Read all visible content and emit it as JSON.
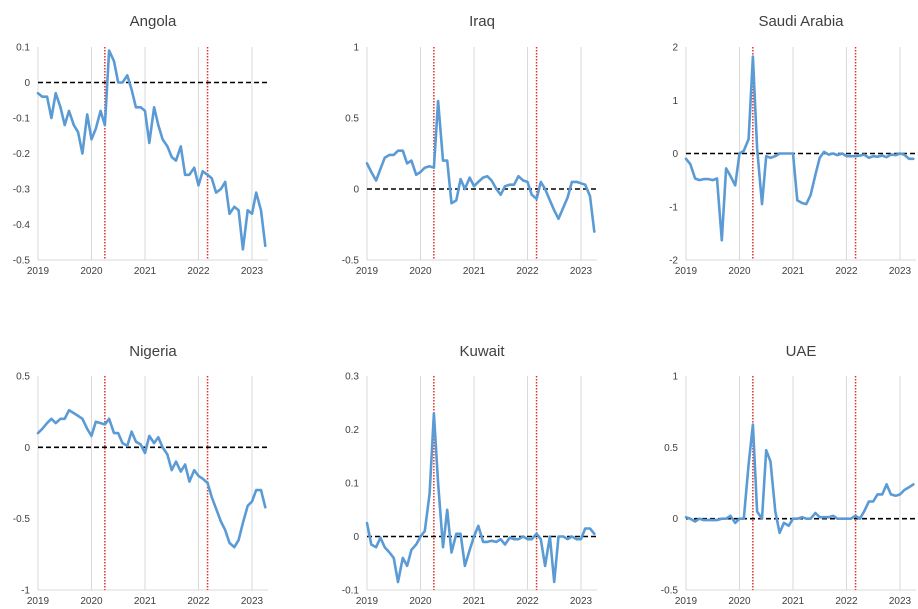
{
  "chart_data": [
    {
      "type": "line",
      "title": "Angola",
      "xlim": [
        2019,
        2023.3
      ],
      "ylim": [
        -0.5,
        0.1
      ],
      "yticks": [
        "0.1",
        "0",
        "-0.1",
        "-0.2",
        "-0.3",
        "-0.4",
        "-0.5"
      ],
      "xticks": [
        "2019",
        "2020",
        "2021",
        "2022",
        "2023"
      ],
      "reference_lines": {
        "zero": 0,
        "vertical": [
          2020.25,
          2022.17
        ]
      },
      "series": [
        {
          "color": "#5b9bd5",
          "x": [
            2019.0,
            2019.08,
            2019.17,
            2019.25,
            2019.33,
            2019.42,
            2019.5,
            2019.58,
            2019.67,
            2019.75,
            2019.83,
            2019.92,
            2020.0,
            2020.08,
            2020.17,
            2020.25,
            2020.33,
            2020.42,
            2020.5,
            2020.58,
            2020.67,
            2020.75,
            2020.83,
            2020.92,
            2021.0,
            2021.08,
            2021.17,
            2021.25,
            2021.33,
            2021.42,
            2021.5,
            2021.58,
            2021.67,
            2021.75,
            2021.83,
            2021.92,
            2022.0,
            2022.08,
            2022.17,
            2022.25,
            2022.33,
            2022.42,
            2022.5,
            2022.58,
            2022.67,
            2022.75,
            2022.83,
            2022.92,
            2023.0,
            2023.08,
            2023.17,
            2023.25
          ],
          "y": [
            -0.03,
            -0.04,
            -0.04,
            -0.1,
            -0.03,
            -0.07,
            -0.12,
            -0.08,
            -0.12,
            -0.14,
            -0.2,
            -0.09,
            -0.16,
            -0.13,
            -0.08,
            -0.12,
            0.09,
            0.06,
            0.0,
            0.0,
            0.02,
            -0.02,
            -0.07,
            -0.07,
            -0.08,
            -0.17,
            -0.07,
            -0.12,
            -0.16,
            -0.18,
            -0.21,
            -0.22,
            -0.18,
            -0.26,
            -0.26,
            -0.24,
            -0.29,
            -0.25,
            -0.26,
            -0.27,
            -0.31,
            -0.3,
            -0.28,
            -0.37,
            -0.35,
            -0.36,
            -0.47,
            -0.36,
            -0.37,
            -0.31,
            -0.36,
            -0.46
          ]
        }
      ]
    },
    {
      "type": "line",
      "title": "Iraq",
      "xlim": [
        2019,
        2023.3
      ],
      "ylim": [
        -0.5,
        1
      ],
      "yticks": [
        "1",
        "0.5",
        "0",
        "-0.5"
      ],
      "xticks": [
        "2019",
        "2020",
        "2021",
        "2022",
        "2023"
      ],
      "reference_lines": {
        "zero": 0,
        "vertical": [
          2020.25,
          2022.17
        ]
      },
      "series": [
        {
          "color": "#5b9bd5",
          "x": [
            2019.0,
            2019.08,
            2019.17,
            2019.25,
            2019.33,
            2019.42,
            2019.5,
            2019.58,
            2019.67,
            2019.75,
            2019.83,
            2019.92,
            2020.0,
            2020.08,
            2020.17,
            2020.25,
            2020.33,
            2020.42,
            2020.5,
            2020.58,
            2020.67,
            2020.75,
            2020.83,
            2020.92,
            2021.0,
            2021.08,
            2021.17,
            2021.25,
            2021.33,
            2021.42,
            2021.5,
            2021.58,
            2021.67,
            2021.75,
            2021.83,
            2021.92,
            2022.0,
            2022.08,
            2022.17,
            2022.25,
            2022.33,
            2022.42,
            2022.5,
            2022.58,
            2022.67,
            2022.75,
            2022.83,
            2022.92,
            2023.0,
            2023.08,
            2023.17,
            2023.25
          ],
          "y": [
            0.18,
            0.12,
            0.06,
            0.14,
            0.22,
            0.24,
            0.24,
            0.27,
            0.27,
            0.18,
            0.2,
            0.1,
            0.12,
            0.15,
            0.16,
            0.15,
            0.62,
            0.2,
            0.2,
            -0.1,
            -0.08,
            0.07,
            0.0,
            0.08,
            0.02,
            0.05,
            0.08,
            0.09,
            0.06,
            0.0,
            -0.04,
            0.02,
            0.03,
            0.03,
            0.09,
            0.06,
            0.05,
            -0.04,
            -0.07,
            0.05,
            0.0,
            -0.08,
            -0.15,
            -0.21,
            -0.13,
            -0.06,
            0.05,
            0.05,
            0.04,
            0.03,
            -0.05,
            -0.3
          ]
        }
      ]
    },
    {
      "type": "line",
      "title": "Saudi Arabia",
      "xlim": [
        2019,
        2023.3
      ],
      "ylim": [
        -2,
        2
      ],
      "yticks": [
        "2",
        "1",
        "0",
        "-1",
        "-2"
      ],
      "xticks": [
        "2019",
        "2020",
        "2021",
        "2022",
        "2023"
      ],
      "reference_lines": {
        "zero": 0,
        "vertical": [
          2020.25,
          2022.17
        ]
      },
      "series": [
        {
          "color": "#5b9bd5",
          "x": [
            2019.0,
            2019.08,
            2019.17,
            2019.25,
            2019.33,
            2019.42,
            2019.5,
            2019.58,
            2019.67,
            2019.75,
            2019.83,
            2019.92,
            2020.0,
            2020.08,
            2020.17,
            2020.25,
            2020.33,
            2020.42,
            2020.5,
            2020.58,
            2020.67,
            2020.75,
            2020.83,
            2020.92,
            2021.0,
            2021.08,
            2021.17,
            2021.25,
            2021.33,
            2021.42,
            2021.5,
            2021.58,
            2021.67,
            2021.75,
            2021.83,
            2021.92,
            2022.0,
            2022.08,
            2022.17,
            2022.25,
            2022.33,
            2022.42,
            2022.5,
            2022.58,
            2022.67,
            2022.75,
            2022.83,
            2022.92,
            2023.0,
            2023.08,
            2023.17,
            2023.25
          ],
          "y": [
            -0.1,
            -0.2,
            -0.47,
            -0.5,
            -0.48,
            -0.48,
            -0.5,
            -0.47,
            -1.63,
            -0.28,
            -0.42,
            -0.6,
            0.0,
            0.05,
            0.27,
            1.82,
            0.1,
            -0.95,
            -0.05,
            -0.08,
            -0.05,
            0.0,
            0.0,
            0.0,
            0.0,
            -0.88,
            -0.93,
            -0.95,
            -0.78,
            -0.4,
            -0.08,
            0.03,
            -0.02,
            0.0,
            -0.03,
            0.0,
            -0.05,
            -0.05,
            -0.05,
            -0.04,
            -0.02,
            -0.08,
            -0.05,
            -0.06,
            -0.04,
            -0.07,
            -0.02,
            -0.03,
            0.0,
            -0.02,
            -0.1,
            -0.1
          ]
        }
      ]
    },
    {
      "type": "line",
      "title": "Nigeria",
      "xlim": [
        2019,
        2023.3
      ],
      "ylim": [
        -1,
        0.5
      ],
      "yticks": [
        "0.5",
        "0",
        "-0.5",
        "-1"
      ],
      "xticks": [
        "2019",
        "2020",
        "2021",
        "2022",
        "2023"
      ],
      "reference_lines": {
        "zero": 0,
        "vertical": [
          2020.25,
          2022.17
        ]
      },
      "series": [
        {
          "color": "#5b9bd5",
          "x": [
            2019.0,
            2019.08,
            2019.17,
            2019.25,
            2019.33,
            2019.42,
            2019.5,
            2019.58,
            2019.67,
            2019.75,
            2019.83,
            2019.92,
            2020.0,
            2020.08,
            2020.17,
            2020.25,
            2020.33,
            2020.42,
            2020.5,
            2020.58,
            2020.67,
            2020.75,
            2020.83,
            2020.92,
            2021.0,
            2021.08,
            2021.17,
            2021.25,
            2021.33,
            2021.42,
            2021.5,
            2021.58,
            2021.67,
            2021.75,
            2021.83,
            2021.92,
            2022.0,
            2022.08,
            2022.17,
            2022.25,
            2022.33,
            2022.42,
            2022.5,
            2022.58,
            2022.67,
            2022.75,
            2022.83,
            2022.92,
            2023.0,
            2023.08,
            2023.17,
            2023.25
          ],
          "y": [
            0.1,
            0.13,
            0.17,
            0.2,
            0.17,
            0.2,
            0.2,
            0.26,
            0.24,
            0.22,
            0.2,
            0.13,
            0.08,
            0.18,
            0.17,
            0.16,
            0.2,
            0.1,
            0.1,
            0.03,
            0.01,
            0.11,
            0.04,
            0.02,
            -0.04,
            0.08,
            0.03,
            0.07,
            0.0,
            -0.05,
            -0.16,
            -0.1,
            -0.17,
            -0.12,
            -0.24,
            -0.16,
            -0.2,
            -0.22,
            -0.25,
            -0.35,
            -0.43,
            -0.52,
            -0.58,
            -0.67,
            -0.7,
            -0.65,
            -0.53,
            -0.41,
            -0.38,
            -0.3,
            -0.3,
            -0.42
          ]
        }
      ]
    },
    {
      "type": "line",
      "title": "Kuwait",
      "xlim": [
        2019,
        2023.3
      ],
      "ylim": [
        -0.1,
        0.3
      ],
      "yticks": [
        "0.3",
        "0.2",
        "0.1",
        "0",
        "-0.1"
      ],
      "xticks": [
        "2019",
        "2020",
        "2021",
        "2022",
        "2023"
      ],
      "reference_lines": {
        "zero": 0,
        "vertical": [
          2020.25,
          2022.17
        ]
      },
      "series": [
        {
          "color": "#5b9bd5",
          "x": [
            2019.0,
            2019.08,
            2019.17,
            2019.25,
            2019.33,
            2019.42,
            2019.5,
            2019.58,
            2019.67,
            2019.75,
            2019.83,
            2019.92,
            2020.0,
            2020.08,
            2020.17,
            2020.25,
            2020.33,
            2020.42,
            2020.5,
            2020.58,
            2020.67,
            2020.75,
            2020.83,
            2020.92,
            2021.0,
            2021.08,
            2021.17,
            2021.25,
            2021.33,
            2021.42,
            2021.5,
            2021.58,
            2021.67,
            2021.75,
            2021.83,
            2021.92,
            2022.0,
            2022.08,
            2022.17,
            2022.25,
            2022.33,
            2022.42,
            2022.5,
            2022.58,
            2022.67,
            2022.75,
            2022.83,
            2022.92,
            2023.0,
            2023.08,
            2023.17,
            2023.25
          ],
          "y": [
            0.025,
            -0.015,
            -0.02,
            -0.002,
            -0.02,
            -0.03,
            -0.04,
            -0.085,
            -0.04,
            -0.055,
            -0.025,
            -0.015,
            0.0,
            0.01,
            0.08,
            0.23,
            0.1,
            -0.02,
            0.05,
            -0.03,
            0.005,
            0.005,
            -0.055,
            -0.025,
            0.0,
            0.02,
            -0.01,
            -0.01,
            -0.008,
            -0.01,
            -0.005,
            -0.015,
            -0.002,
            -0.005,
            -0.005,
            0.0,
            -0.005,
            -0.005,
            0.005,
            -0.005,
            -0.055,
            0.0,
            -0.085,
            0.0,
            0.0,
            -0.005,
            0.0,
            -0.005,
            -0.005,
            0.015,
            0.015,
            0.005
          ]
        }
      ]
    },
    {
      "type": "line",
      "title": "UAE",
      "xlim": [
        2019,
        2023.3
      ],
      "ylim": [
        -0.5,
        1
      ],
      "yticks": [
        "1",
        "0.5",
        "0",
        "-0.5"
      ],
      "xticks": [
        "2019",
        "2020",
        "2021",
        "2022",
        "2023"
      ],
      "reference_lines": {
        "zero": 0,
        "vertical": [
          2020.25,
          2022.17
        ]
      },
      "series": [
        {
          "color": "#5b9bd5",
          "x": [
            2019.0,
            2019.08,
            2019.17,
            2019.25,
            2019.33,
            2019.42,
            2019.5,
            2019.58,
            2019.67,
            2019.75,
            2019.83,
            2019.92,
            2020.0,
            2020.08,
            2020.17,
            2020.25,
            2020.33,
            2020.42,
            2020.5,
            2020.58,
            2020.67,
            2020.75,
            2020.83,
            2020.92,
            2021.0,
            2021.08,
            2021.17,
            2021.25,
            2021.33,
            2021.42,
            2021.5,
            2021.58,
            2021.67,
            2021.75,
            2021.83,
            2021.92,
            2022.0,
            2022.08,
            2022.17,
            2022.25,
            2022.33,
            2022.42,
            2022.5,
            2022.58,
            2022.67,
            2022.75,
            2022.83,
            2022.92,
            2023.0,
            2023.08,
            2023.17,
            2023.25
          ],
          "y": [
            0.01,
            0.0,
            -0.02,
            0.0,
            -0.01,
            -0.01,
            -0.01,
            -0.01,
            0.0,
            0.0,
            0.02,
            -0.03,
            0.0,
            0.0,
            0.38,
            0.66,
            0.05,
            0.0,
            0.48,
            0.4,
            0.05,
            -0.1,
            -0.03,
            -0.05,
            0.0,
            0.0,
            0.01,
            0.0,
            0.0,
            0.04,
            0.01,
            0.01,
            0.01,
            0.02,
            0.0,
            0.0,
            0.0,
            0.0,
            0.02,
            0.0,
            0.05,
            0.12,
            0.12,
            0.17,
            0.17,
            0.24,
            0.17,
            0.16,
            0.17,
            0.2,
            0.22,
            0.24
          ]
        }
      ]
    }
  ]
}
